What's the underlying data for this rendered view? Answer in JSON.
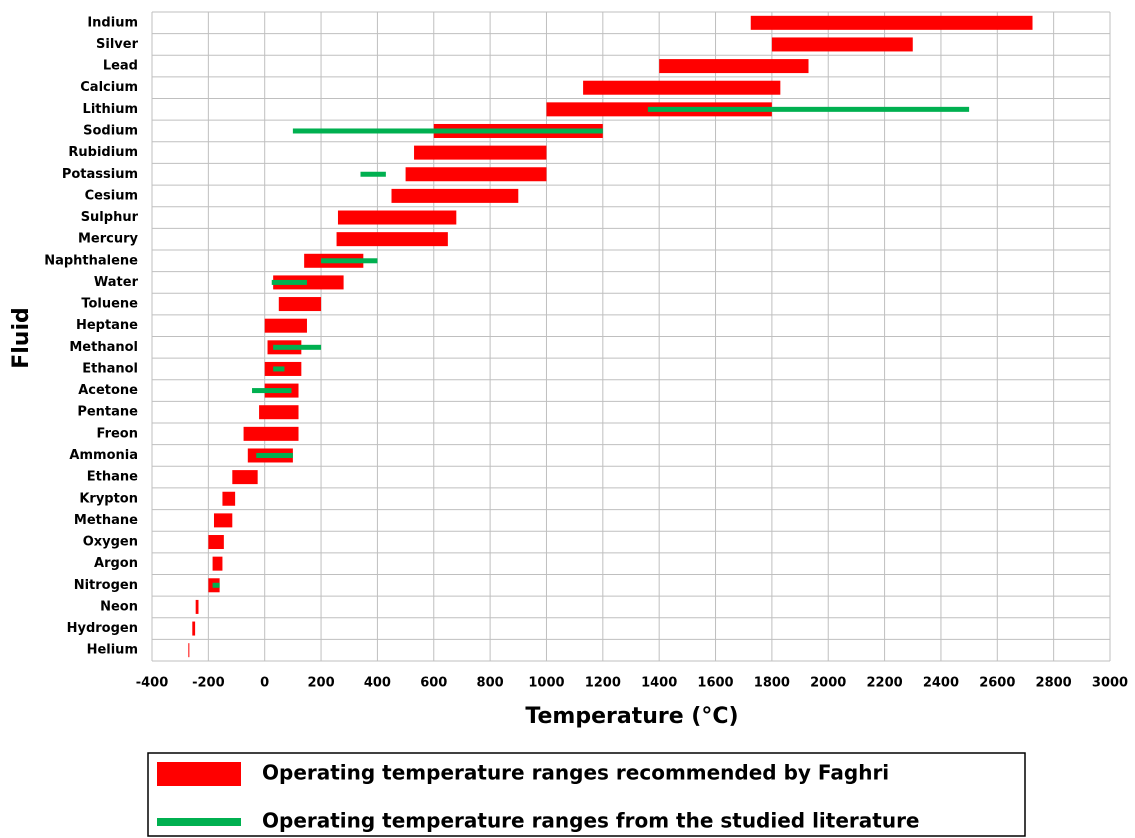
{
  "chart_data": {
    "type": "range-bar",
    "x_label": "Temperature (°C)",
    "y_label": "Fluid",
    "categories": [
      "Indium",
      "Silver",
      "Lead",
      "Calcium",
      "Lithium",
      "Sodium",
      "Rubidium",
      "Potassium",
      "Cesium",
      "Sulphur",
      "Mercury",
      "Naphthalene",
      "Water",
      "Toluene",
      "Heptane",
      "Methanol",
      "Ethanol",
      "Acetone",
      "Pentane",
      "Freon",
      "Ammonia",
      "Ethane",
      "Krypton",
      "Methane",
      "Oxygen",
      "Argon",
      "Nitrogen",
      "Neon",
      "Hydrogen",
      "Helium"
    ],
    "series": [
      {
        "name": "Operating temperature ranges recommended by Faghri",
        "color": "#ff0000",
        "values": [
          [
            1725,
            2725
          ],
          [
            1800,
            2300
          ],
          [
            1400,
            1930
          ],
          [
            1130,
            1830
          ],
          [
            1000,
            1800
          ],
          [
            600,
            1200
          ],
          [
            530,
            1000
          ],
          [
            500,
            1000
          ],
          [
            450,
            900
          ],
          [
            260,
            680
          ],
          [
            255,
            650
          ],
          [
            140,
            350
          ],
          [
            30,
            280
          ],
          [
            50,
            200
          ],
          [
            0,
            150
          ],
          [
            10,
            130
          ],
          [
            0,
            130
          ],
          [
            0,
            120
          ],
          [
            -20,
            120
          ],
          [
            -75,
            120
          ],
          [
            -60,
            100
          ],
          [
            -115,
            -25
          ],
          [
            -150,
            -105
          ],
          [
            -180,
            -115
          ],
          [
            -200,
            -145
          ],
          [
            -185,
            -150
          ],
          [
            -200,
            -160
          ],
          [
            -245,
            -235
          ],
          [
            -257,
            -247
          ],
          [
            -271,
            -268
          ]
        ]
      },
      {
        "name": "Operating temperature ranges from the studied literature",
        "color": "#00b050",
        "values": [
          null,
          null,
          null,
          null,
          [
            1360,
            2500
          ],
          [
            100,
            1200
          ],
          null,
          [
            340,
            430
          ],
          null,
          null,
          null,
          [
            200,
            400
          ],
          [
            25,
            150
          ],
          null,
          null,
          [
            30,
            200
          ],
          [
            30,
            70
          ],
          [
            -45,
            95
          ],
          null,
          null,
          [
            -30,
            100
          ],
          null,
          null,
          null,
          null,
          null,
          [
            -185,
            -160
          ],
          null,
          null,
          null
        ]
      }
    ],
    "xlim": [
      -400,
      3000
    ],
    "xticks": [
      -400,
      -200,
      0,
      200,
      400,
      600,
      800,
      1000,
      1200,
      1400,
      1600,
      1800,
      2000,
      2200,
      2400,
      2600,
      2800,
      3000
    ],
    "grid": true
  }
}
